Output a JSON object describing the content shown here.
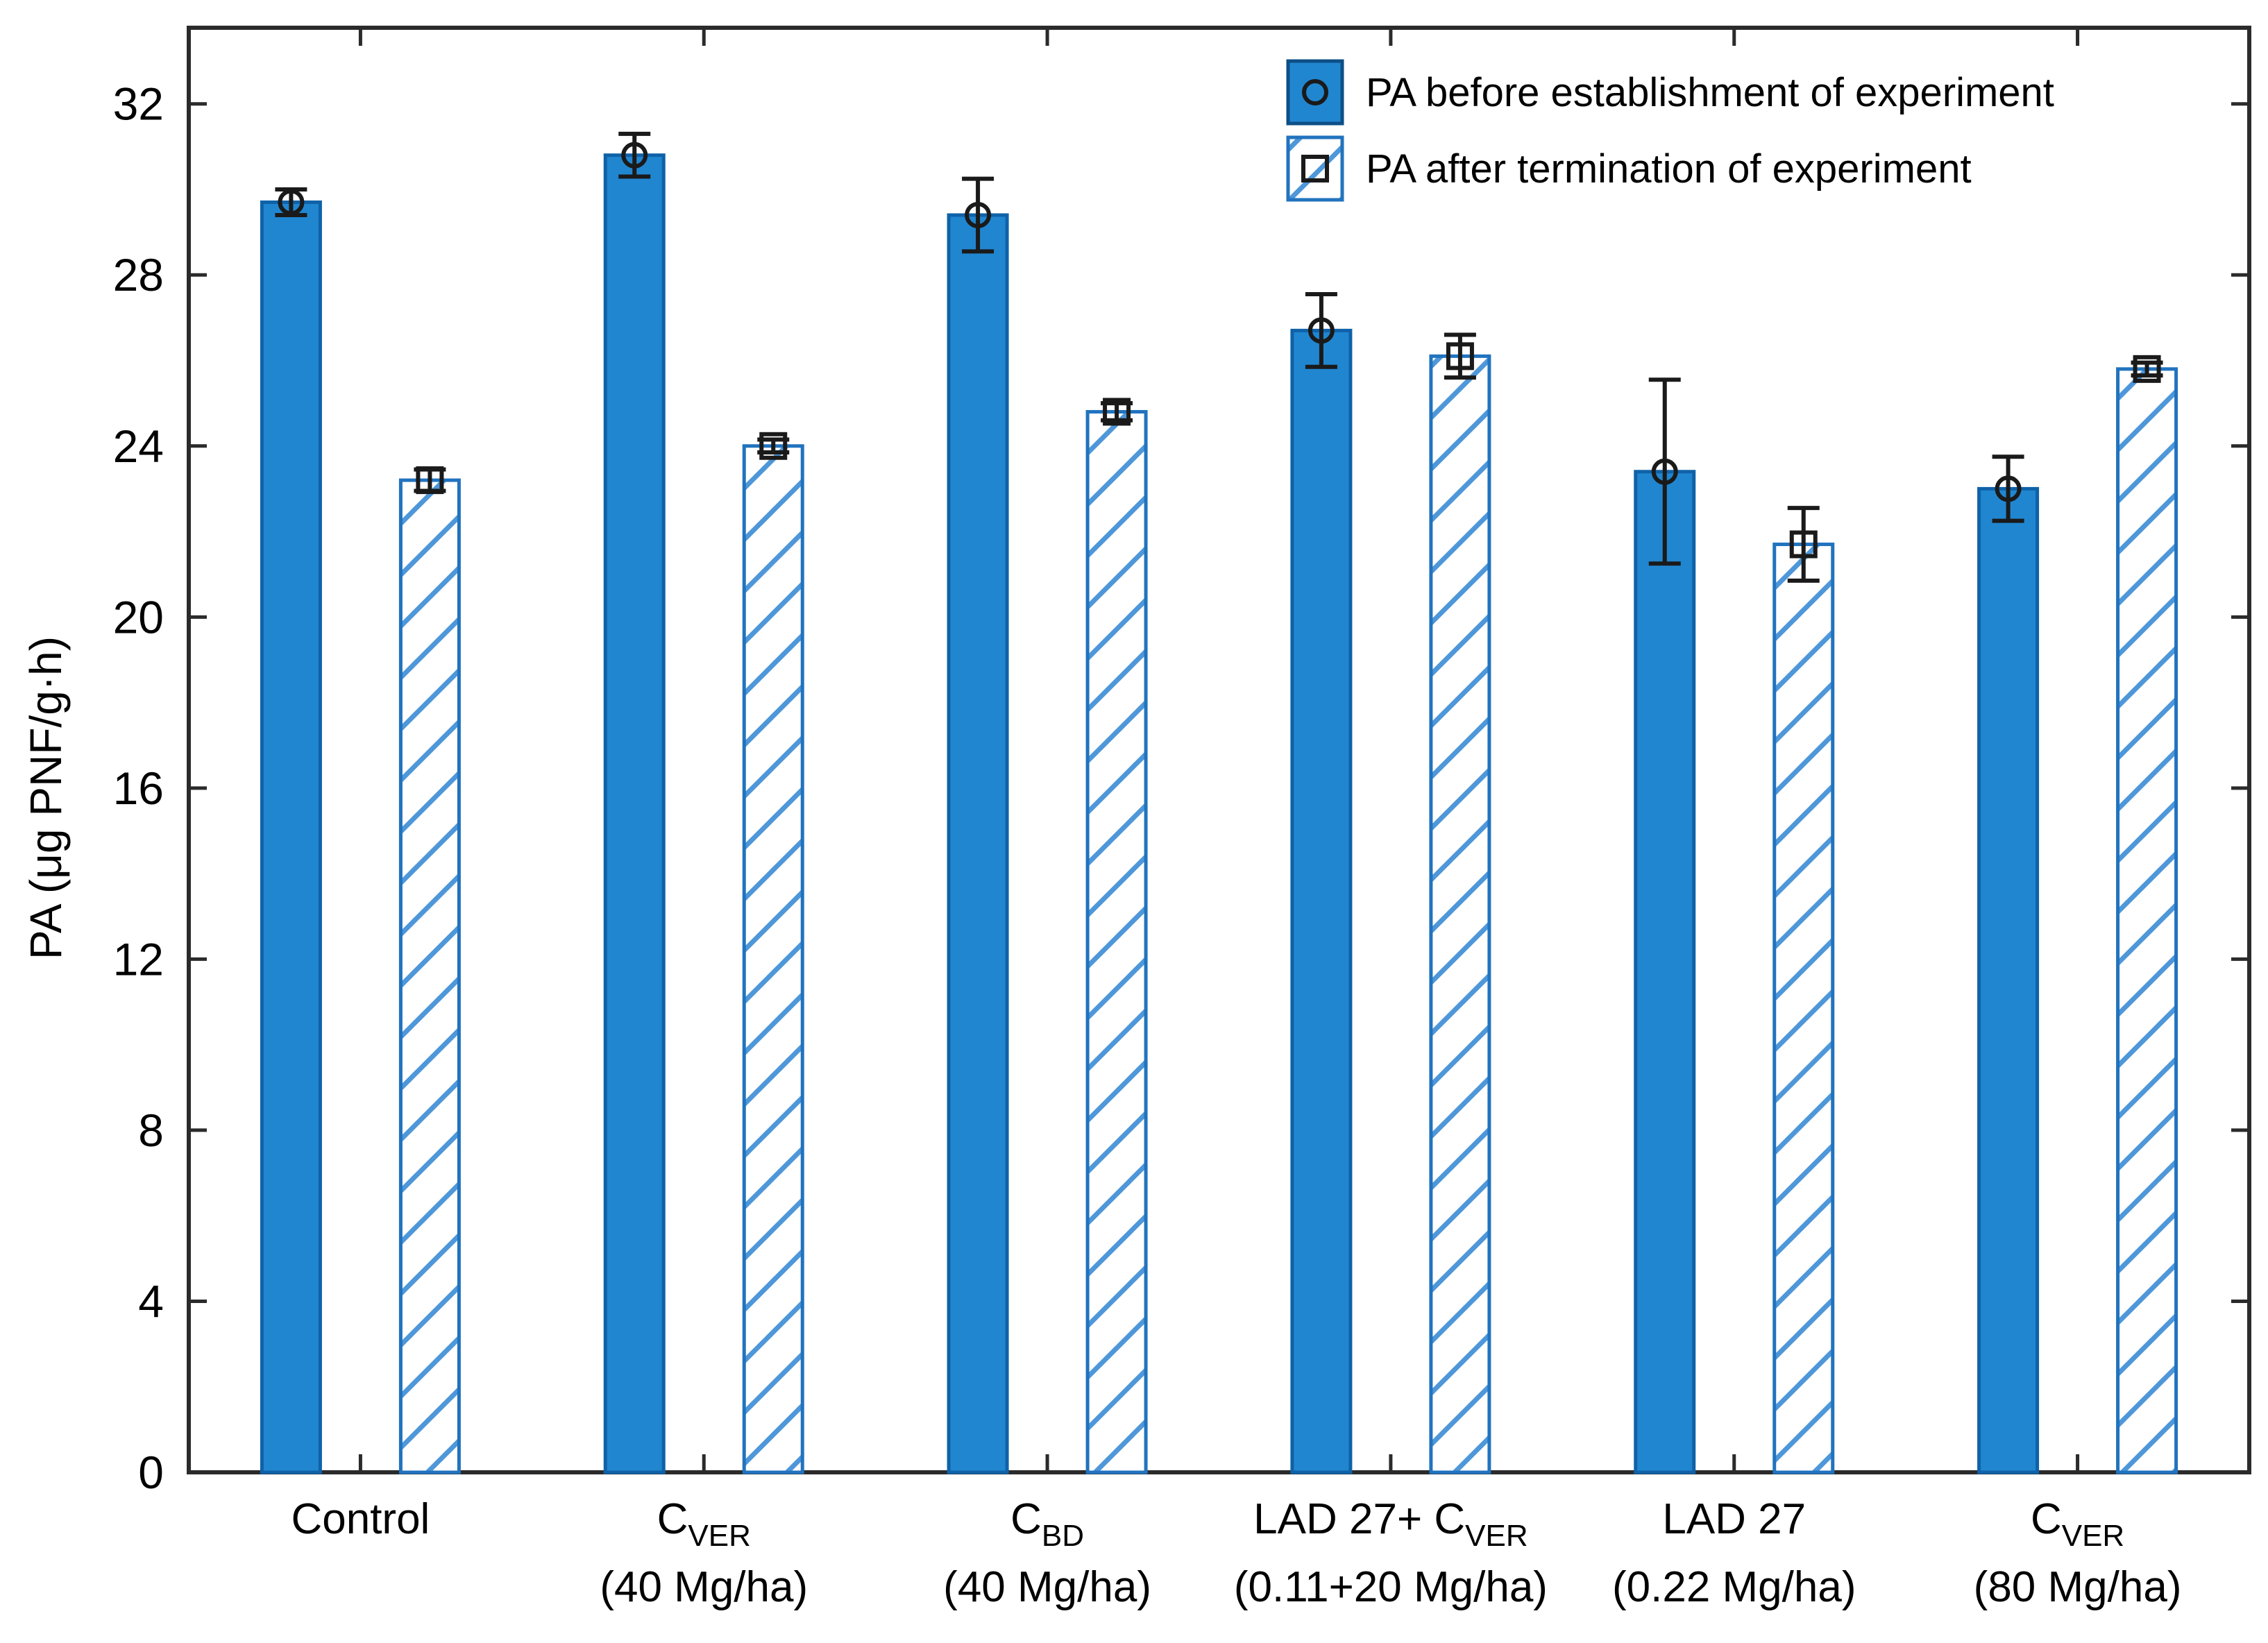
{
  "chart_data": {
    "type": "bar",
    "title": "",
    "xlabel": "",
    "ylabel": "PA (μg PNF/g·h)",
    "ylim": [
      0,
      32
    ],
    "yticks": [
      0,
      4,
      8,
      12,
      16,
      20,
      24,
      28,
      32
    ],
    "grid": false,
    "legend_position": "top-right-inside",
    "categories": [
      {
        "name": "Control",
        "line1": [
          {
            "t": "Control"
          }
        ],
        "line2": ""
      },
      {
        "name": "C_VER (40 Mg/ha)",
        "line1": [
          {
            "t": "C"
          },
          {
            "t": "VER",
            "sub": true
          }
        ],
        "line2": "(40 Mg/ha)"
      },
      {
        "name": "C_BD (40 Mg/ha)",
        "line1": [
          {
            "t": "C"
          },
          {
            "t": "BD",
            "sub": true
          }
        ],
        "line2": "(40 Mg/ha)"
      },
      {
        "name": "LAD 27+ C_VER (0.11+20 Mg/ha)",
        "line1": [
          {
            "t": "LAD 27+ C"
          },
          {
            "t": "VER",
            "sub": true
          }
        ],
        "line2": "(0.11+20 Mg/ha)"
      },
      {
        "name": "LAD 27 (0.22 Mg/ha)",
        "line1": [
          {
            "t": "LAD 27"
          }
        ],
        "line2": "(0.22 Mg/ha)"
      },
      {
        "name": "C_VER (80 Mg/ha)",
        "line1": [
          {
            "t": "C"
          },
          {
            "t": "VER",
            "sub": true
          }
        ],
        "line2": "(80 Mg/ha)"
      }
    ],
    "series": [
      {
        "name": "PA before establishment of experiment",
        "style": "solid",
        "marker": "circle",
        "fill": "#2186D0",
        "border": "#0F62A8",
        "values": [
          29.7,
          30.8,
          29.4,
          26.7,
          23.4,
          23.0
        ],
        "errors": [
          0.3,
          0.5,
          0.85,
          0.85,
          2.15,
          0.75
        ]
      },
      {
        "name": "PA after termination of experiment",
        "style": "hatched",
        "marker": "square",
        "fill": "#FFFFFF",
        "border": "#2173BE",
        "hatch_color": "#4E97D9",
        "values": [
          23.2,
          24.0,
          24.8,
          26.1,
          21.7,
          25.8
        ],
        "errors": [
          0.25,
          0.15,
          0.2,
          0.5,
          0.85,
          0.15
        ]
      }
    ],
    "error_bar_color": "#1a1a1a",
    "axis_color": "#2b2b2b",
    "text_color": "#000000",
    "background": "#ffffff"
  }
}
